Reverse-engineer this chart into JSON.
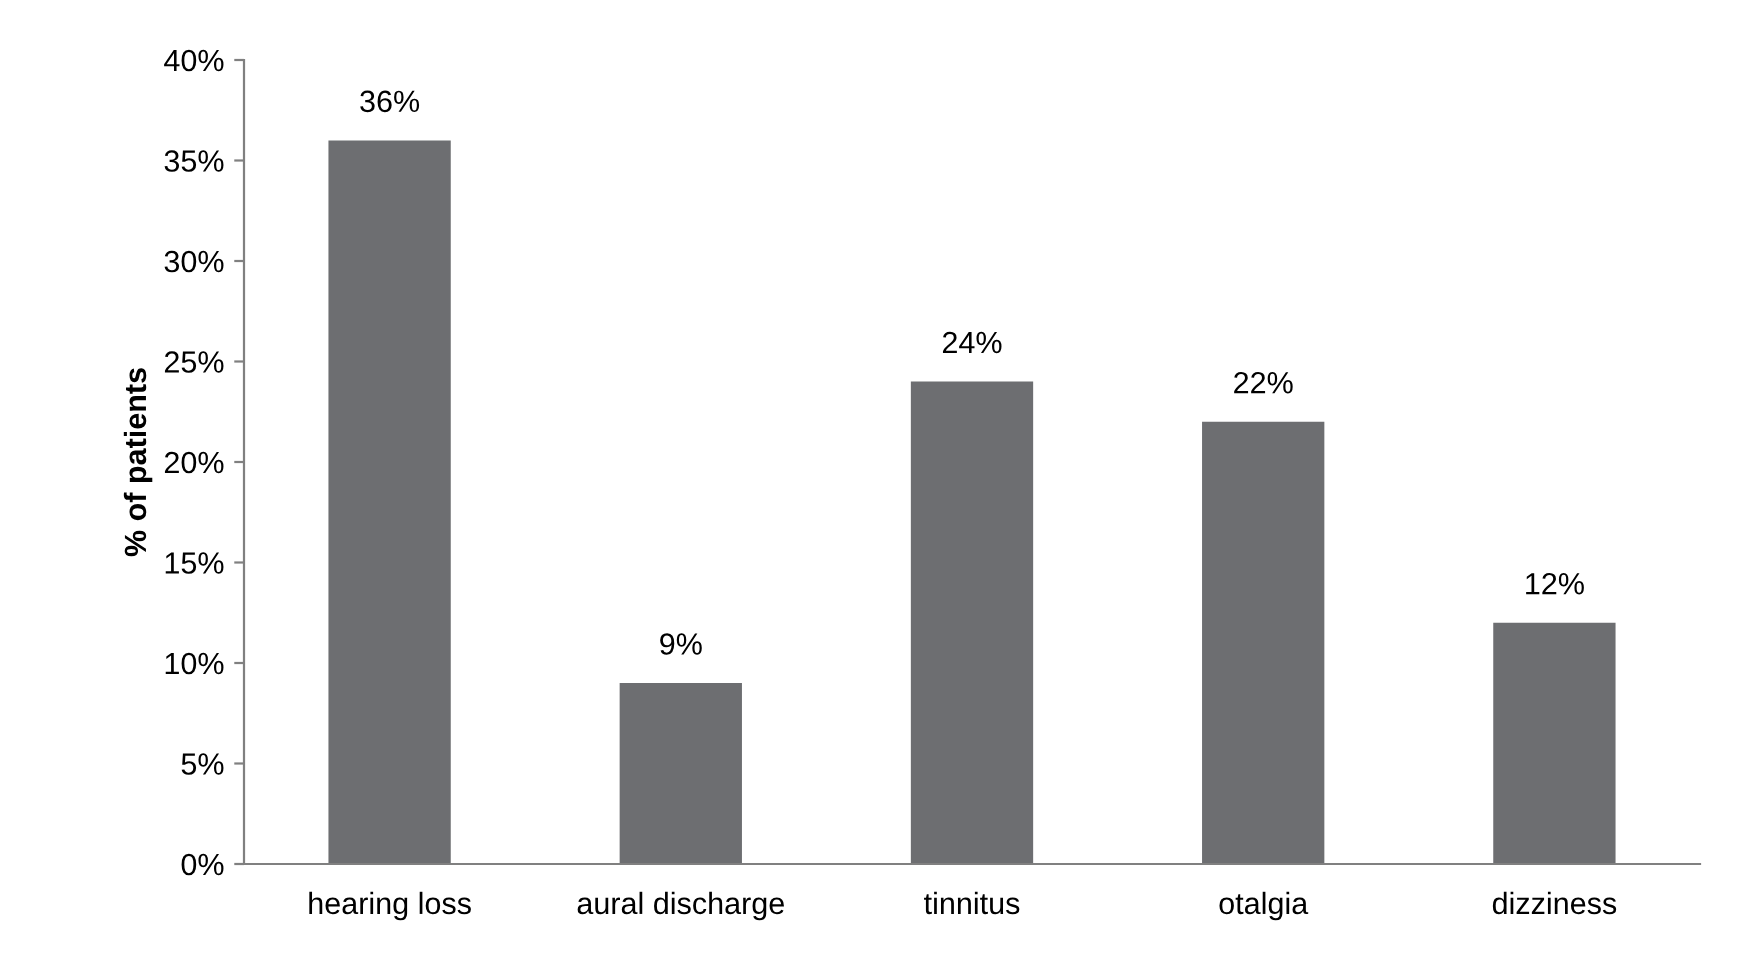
{
  "chart_data": {
    "type": "bar",
    "ylabel": "% of patients",
    "categories": [
      "hearing loss",
      "aural discharge",
      "tinnitus",
      "otalgia",
      "dizziness"
    ],
    "values": [
      36,
      9,
      24,
      22,
      12
    ],
    "value_labels": [
      "36%",
      "9%",
      "24%",
      "22%",
      "12%"
    ],
    "color": "#6d6e71",
    "ylim": [
      0,
      40
    ],
    "yticks": [
      {
        "value": 0,
        "label": "0%"
      },
      {
        "value": 5,
        "label": "5%"
      },
      {
        "value": 10,
        "label": "10%"
      },
      {
        "value": 15,
        "label": "15%"
      },
      {
        "value": 20,
        "label": "20%"
      },
      {
        "value": 25,
        "label": "25%"
      },
      {
        "value": 30,
        "label": "30%"
      },
      {
        "value": 35,
        "label": "35%"
      },
      {
        "value": 40,
        "label": "40%"
      }
    ],
    "grid": false,
    "legend": false
  }
}
